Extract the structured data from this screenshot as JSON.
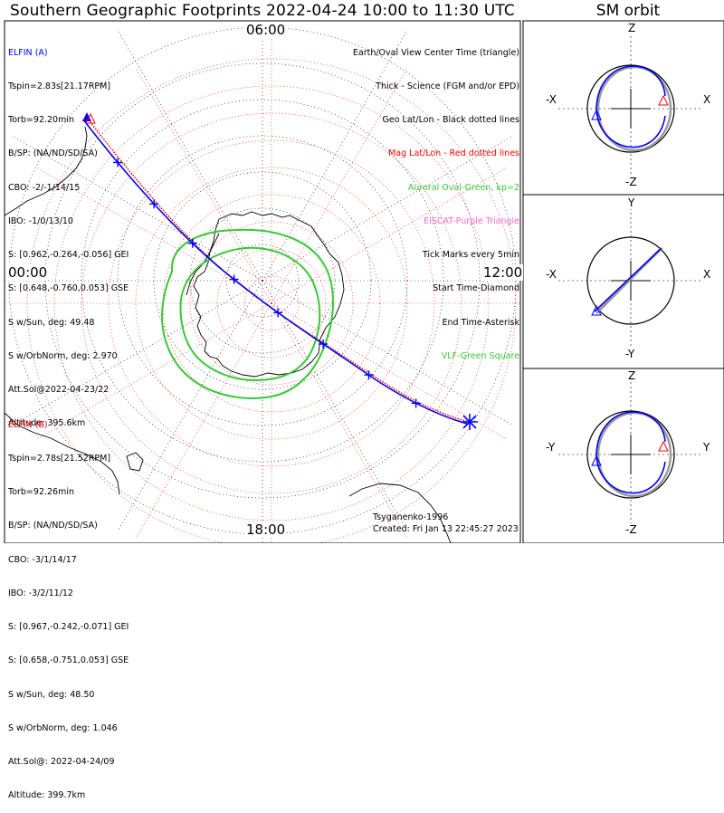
{
  "title": "Southern Geographic Footprints 2022-04-24 10:00 to 11:30 UTC",
  "sm_title": "SM orbit",
  "colors": {
    "elfin_a": "#0000ff",
    "elfin_b": "#ff0000",
    "oval": "#33cc33",
    "geo": "#000000",
    "mag": "#ff0000",
    "eiscat": "#ff66cc",
    "vlf": "#33cc33",
    "sm_shadow": "#999999"
  },
  "clock_labels": {
    "top": "06:00",
    "left": "00:00",
    "right": "12:00",
    "bottom": "18:00"
  },
  "elfin_a": {
    "name": "ELFIN (A)",
    "lines": [
      "Tspin=2.83s[21.17RPM]",
      "Torb=92.20min",
      "B/SP: (NA/ND/SD/SA)",
      "CBO: -2/-1/14/15",
      "IBO: -1/0/13/10",
      "S: [0.962,-0.264,-0.056] GEI",
      "S: [0.648,-0.760,0.053] GSE",
      "S w/Sun, deg: 49.48",
      "S w/OrbNorm, deg: 2.970",
      "Att.Sol@2022-04-23/22",
      "Altitude: 395.6km"
    ]
  },
  "elfin_b": {
    "name": "ELFIN (B)",
    "lines": [
      "Tspin=2.78s[21.52RPM]",
      "Torb=92.26min",
      "B/SP: (NA/ND/SD/SA)",
      "CBO: -3/1/14/17",
      "IBO: -3/2/11/12",
      "S: [0.967,-0.242,-0.071] GEI",
      "S: [0.658,-0.751,0.053] GSE",
      "S w/Sun, deg: 48.50",
      "S w/OrbNorm, deg: 1.046",
      "Att.Sol@: 2022-04-24/09",
      "Altitude: 399.7km"
    ]
  },
  "legend": [
    {
      "text": "Earth/Oval View Center Time (triangle)",
      "color": "#000000"
    },
    {
      "text": "Thick - Science (FGM and/or EPD)",
      "color": "#000000"
    },
    {
      "text": "Geo Lat/Lon - Black dotted lines",
      "color": "#000000"
    },
    {
      "text": "Mag Lat/Lon - Red dotted lines",
      "color": "#ff0000"
    },
    {
      "text": "Auroral Oval-Green, kp=2",
      "color": "#33cc33"
    },
    {
      "text": "EISCAT-Purple Triangle",
      "color": "#ff66cc"
    },
    {
      "text": "Tick Marks every 5min",
      "color": "#000000"
    },
    {
      "text": "Start Time-Diamond",
      "color": "#000000"
    },
    {
      "text": "End Time-Asterisk",
      "color": "#000000"
    },
    {
      "text": "VLF-Green Square",
      "color": "#33cc33"
    }
  ],
  "credits": {
    "model": "Tsyganenko-1996",
    "created": "Created: Fri Jan 13 22:45:27 2023"
  },
  "sm_panels": [
    {
      "top": "Z",
      "bottom": "-Z",
      "left": "-X",
      "right": "X"
    },
    {
      "top": "Y",
      "bottom": "-Y",
      "left": "-X",
      "right": "X"
    },
    {
      "top": "Z",
      "bottom": "-Z",
      "left": "-Y",
      "right": "Y"
    }
  ]
}
